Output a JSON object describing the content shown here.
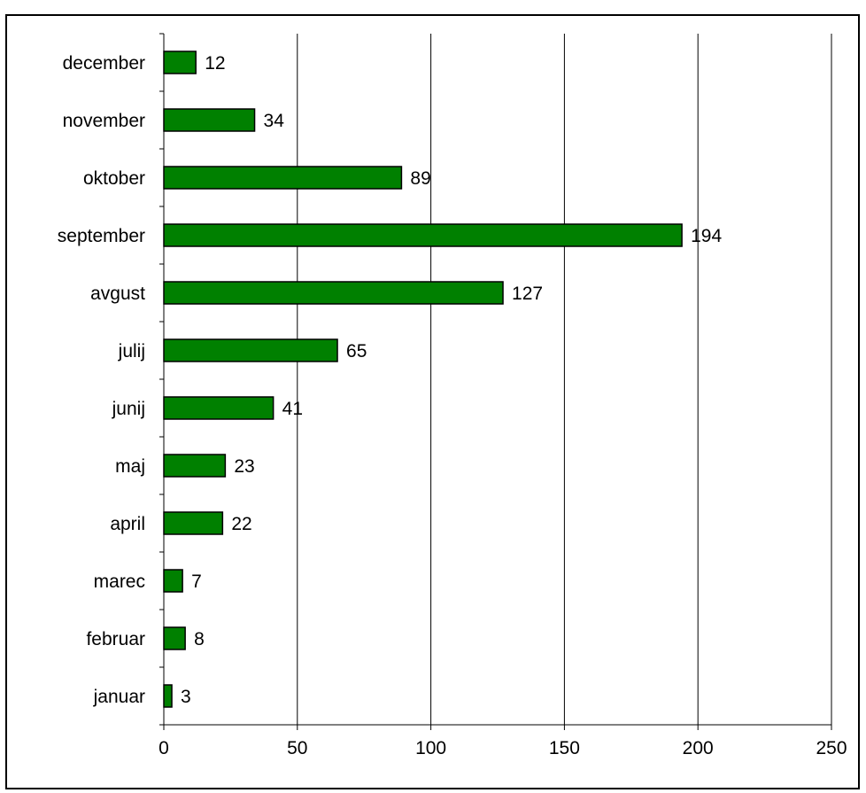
{
  "chart_data": {
    "type": "bar",
    "orientation": "horizontal",
    "title": "",
    "xlabel": "",
    "ylabel": "",
    "categories": [
      "januar",
      "februar",
      "marec",
      "april",
      "maj",
      "junij",
      "julij",
      "avgust",
      "september",
      "oktober",
      "november",
      "december"
    ],
    "values": [
      3,
      8,
      7,
      22,
      23,
      41,
      65,
      127,
      194,
      89,
      34,
      12
    ],
    "xlim": [
      0,
      250
    ],
    "xticks": [
      "0",
      "50",
      "100",
      "150",
      "200",
      "250"
    ],
    "xtick_values": [
      0,
      50,
      100,
      150,
      200,
      250
    ],
    "grid": "vertical",
    "legend": "none",
    "bar_color": "#008000",
    "bar_edge_color": "#000000",
    "data_labels": true
  }
}
